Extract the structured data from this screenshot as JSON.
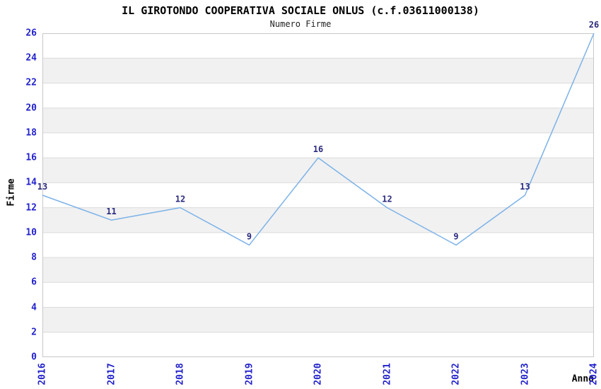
{
  "chart_data": {
    "type": "line",
    "title": "IL GIROTONDO COOPERATIVA SOCIALE ONLUS (c.f.03611000138)",
    "subtitle": "Numero Firme",
    "xlabel": "Anno",
    "ylabel": "Firme",
    "categories": [
      "2016",
      "2017",
      "2018",
      "2019",
      "2020",
      "2021",
      "2022",
      "2023",
      "2024"
    ],
    "values": [
      13,
      11,
      12,
      9,
      16,
      12,
      9,
      13,
      26
    ],
    "point_labels": [
      "13",
      "11",
      "12",
      "9",
      "16",
      "12",
      "9",
      "13",
      "26"
    ],
    "ylim": [
      0,
      26
    ],
    "ytick_step": 2,
    "yticks": [
      0,
      2,
      4,
      6,
      8,
      10,
      12,
      14,
      16,
      18,
      20,
      22,
      24,
      26
    ],
    "grid": true,
    "legend": "none",
    "band_fill_alternating": true,
    "colors": {
      "line": "#7CB2E8",
      "tick_labels": "#2222CC",
      "point_labels": "#2B2B80",
      "band": "#F1F1F1",
      "gridline": "#DBDBDB",
      "plot_border": "#C8C8C8",
      "title": "#000000",
      "background": "#FFFFFF"
    }
  }
}
